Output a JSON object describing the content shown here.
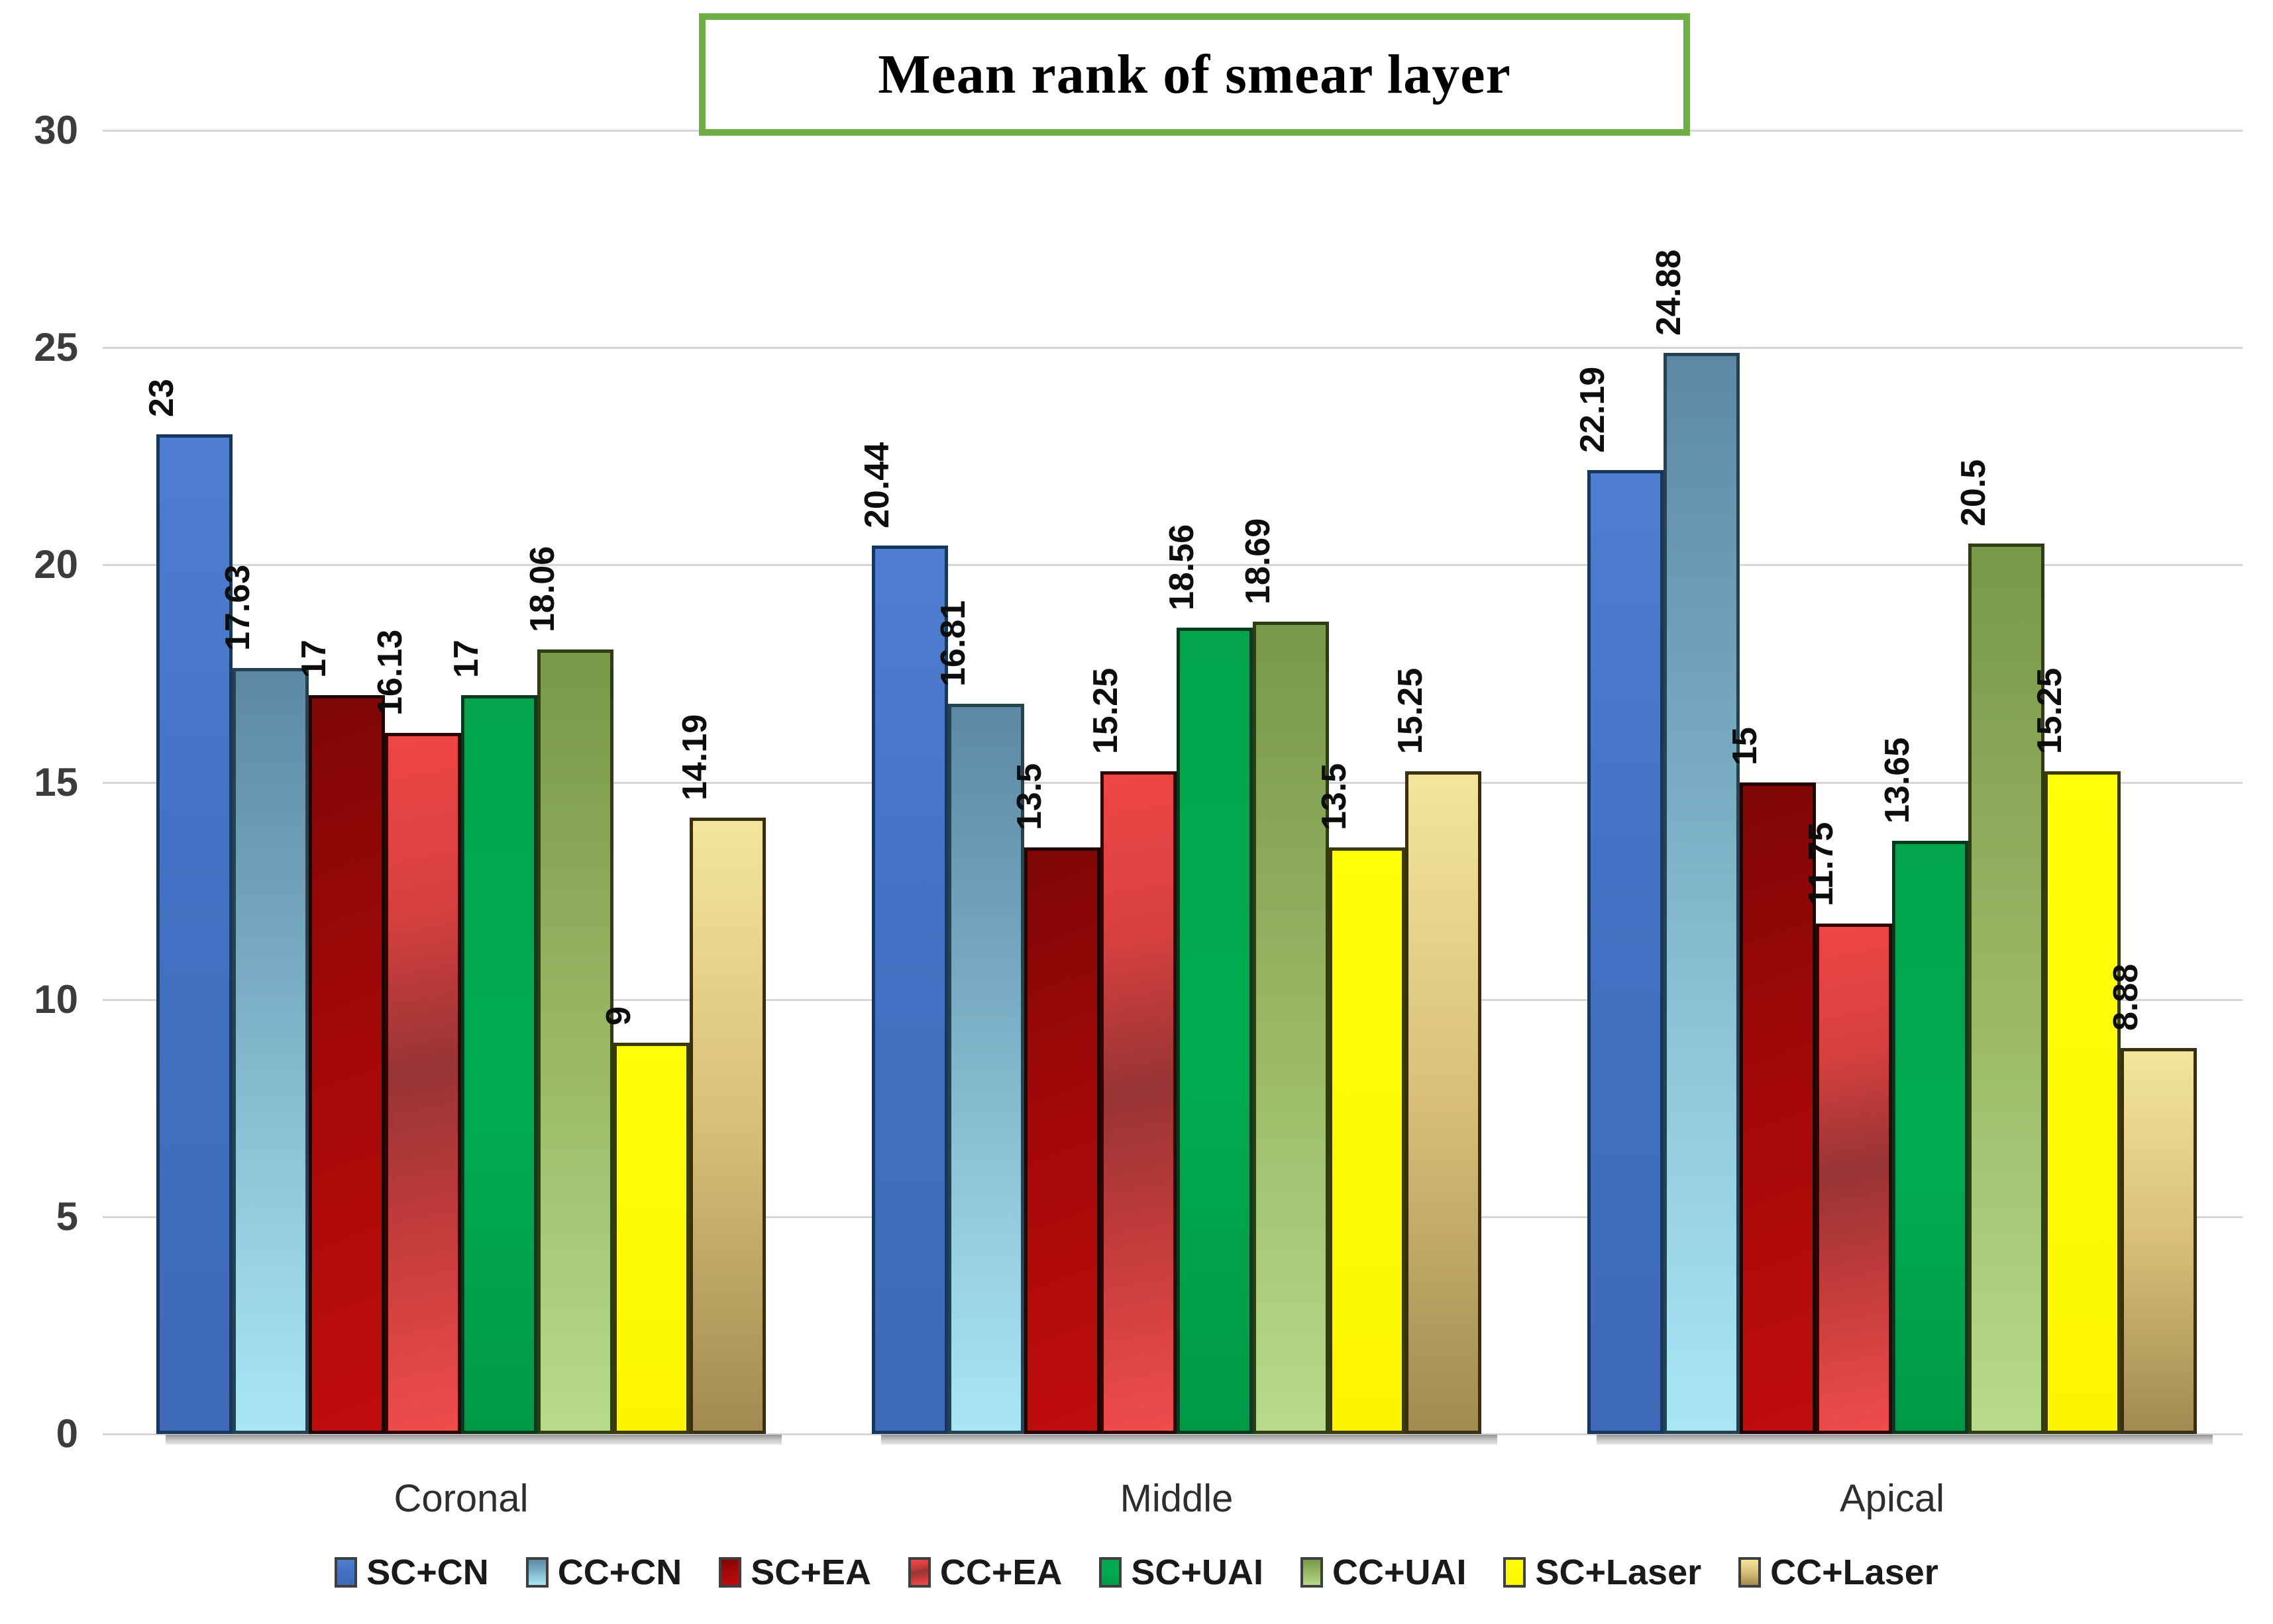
{
  "title": "Mean rank of smear layer",
  "colors": {
    "background": "#FFFFFF",
    "gridline": "#D6D6D6",
    "title_border": "#6FAE46",
    "axis_text": "#3C3C3C",
    "category_text": "#2E2E2E",
    "bar_label_text": "#0D0D0D",
    "legend_text": "#1A1A1A"
  },
  "chart_data": {
    "type": "bar",
    "title": "Mean rank of smear layer",
    "categories": [
      "Coronal",
      "Middle",
      "Apical"
    ],
    "series": [
      {
        "name": "SC+CN",
        "values": [
          23,
          20.44,
          22.19
        ],
        "labels": [
          "23",
          "20.44",
          "22.19"
        ],
        "color": "#4472C4",
        "fill": "linear-gradient(180deg,#4F7DD0 0%,#4472C4 40%,#3E69B8 100%)",
        "border": "#17375E"
      },
      {
        "name": "CC+CN",
        "values": [
          17.63,
          16.81,
          24.88
        ],
        "labels": [
          "17.63",
          "16.81",
          "24.88"
        ],
        "color": "#7FB3C8",
        "fill": "linear-gradient(180deg,#5D88A4 0%,#79ACC2 40%,#93CBDD 70%,#A8E6F6 100%)",
        "border": "#24424F"
      },
      {
        "name": "SC+EA",
        "values": [
          17,
          13.5,
          15
        ],
        "labels": [
          "17",
          "13.5",
          "15"
        ],
        "color": "#C00000",
        "fill": "linear-gradient(160deg,#7E0606 0%,#A30808 45%,#C00D0D 100%)",
        "border": "#220303"
      },
      {
        "name": "CC+EA",
        "values": [
          16.13,
          15.25,
          11.75
        ],
        "labels": [
          "16.13",
          "15.25",
          "11.75"
        ],
        "color": "#E84444",
        "fill": "linear-gradient(170deg,#EF4545 0%,#D74040 25%,#983434 48%,#C53C3C 72%,#F04C4C 100%)",
        "border": "#2E0606"
      },
      {
        "name": "SC+UAI",
        "values": [
          17,
          18.56,
          13.65
        ],
        "labels": [
          "17",
          "18.56",
          "13.65"
        ],
        "color": "#00A651",
        "fill": "linear-gradient(180deg,#02A54C 0%,#00AB50 55%,#009A47 100%)",
        "border": "#053A1E"
      },
      {
        "name": "CC+UAI",
        "values": [
          18.06,
          18.69,
          20.5
        ],
        "labels": [
          "18.06",
          "18.69",
          "20.5"
        ],
        "color": "#9BBB68",
        "fill": "linear-gradient(180deg,#78984A 0%,#9BBB68 55%,#B7DB8B 100%)",
        "border": "#2F3D14"
      },
      {
        "name": "SC+Laser",
        "values": [
          9,
          13.5,
          15.25
        ],
        "labels": [
          "9",
          "13.5",
          "15.25"
        ],
        "color": "#FFFF00",
        "fill": "linear-gradient(180deg,#FFFF08 0%,#FBF600 100%)",
        "border": "#3B3B05"
      },
      {
        "name": "CC+Laser",
        "values": [
          14.19,
          15.25,
          8.88
        ],
        "labels": [
          "14.19",
          "15.25",
          "8.88"
        ],
        "color": "#D9BE77",
        "fill": "linear-gradient(180deg,#F3E59B 0%,#D9BE77 50%,#A18B51 100%)",
        "border": "#3A2F12"
      }
    ],
    "ylim": [
      0,
      30
    ],
    "yticks": [
      "0",
      "5",
      "10",
      "15",
      "20",
      "25",
      "30"
    ],
    "grid": true,
    "legend_position": "bottom",
    "value_label_rotation": -90
  }
}
